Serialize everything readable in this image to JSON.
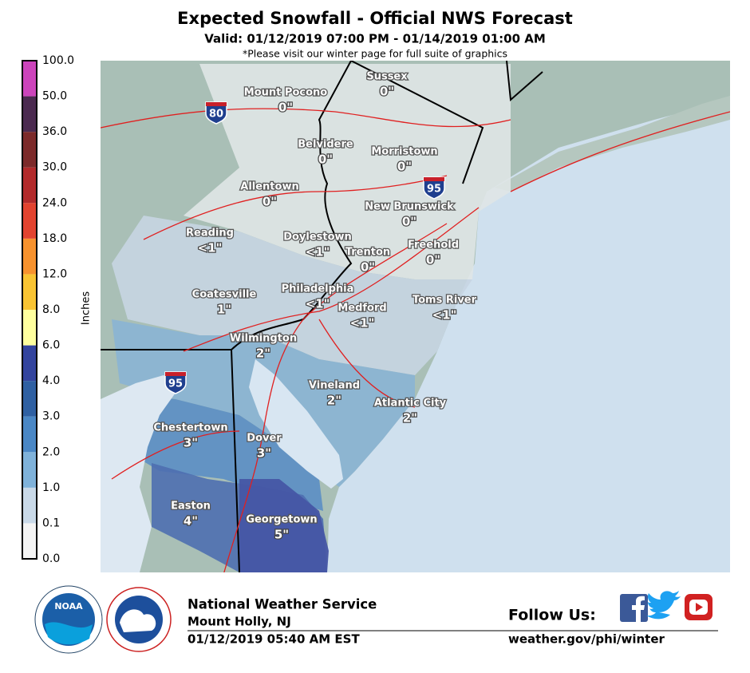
{
  "header": {
    "title": "Expected Snowfall - Official NWS Forecast",
    "valid": "Valid: 01/12/2019 07:00 PM - 01/14/2019 01:00 AM",
    "note": "*Please visit our winter page for full suite of graphics"
  },
  "legend": {
    "title": "Inches",
    "labels": [
      "0.0",
      "0.1",
      "1.0",
      "2.0",
      "3.0",
      "4.0",
      "6.0",
      "8.0",
      "12.0",
      "18.0",
      "24.0",
      "30.0",
      "36.0",
      "50.0",
      "100.0"
    ],
    "colors": [
      "#f4f4f4",
      "#c9d9e8",
      "#7fb2da",
      "#4a87c5",
      "#2f60a2",
      "#33449e",
      "#ffff9e",
      "#f9c433",
      "#f7922e",
      "#e2432f",
      "#b22a2b",
      "#7c2a2a",
      "#4b2a50",
      "#cc44bb"
    ]
  },
  "map": {
    "places": [
      {
        "name": "Mount Pocono",
        "amount": "0\""
      },
      {
        "name": "Sussex",
        "amount": "0\""
      },
      {
        "name": "Belvidere",
        "amount": "0\""
      },
      {
        "name": "Morristown",
        "amount": "0\""
      },
      {
        "name": "Allentown",
        "amount": "0\""
      },
      {
        "name": "New Brunswick",
        "amount": "0\""
      },
      {
        "name": "Reading",
        "amount": "<1\""
      },
      {
        "name": "Doylestown",
        "amount": "<1\""
      },
      {
        "name": "Trenton",
        "amount": "0\""
      },
      {
        "name": "Freehold",
        "amount": "0\""
      },
      {
        "name": "Coatesville",
        "amount": "1\""
      },
      {
        "name": "Philadelphia",
        "amount": "<1\""
      },
      {
        "name": "Medford",
        "amount": "<1\""
      },
      {
        "name": "Toms River",
        "amount": "<1\""
      },
      {
        "name": "Wilmington",
        "amount": "2\""
      },
      {
        "name": "Vineland",
        "amount": "2\""
      },
      {
        "name": "Atlantic City",
        "amount": "2\""
      },
      {
        "name": "Chestertown",
        "amount": "3\""
      },
      {
        "name": "Dover",
        "amount": "3\""
      },
      {
        "name": "Easton",
        "amount": "4\""
      },
      {
        "name": "Georgetown",
        "amount": "5\""
      }
    ],
    "shields": [
      "80",
      "95",
      "95"
    ]
  },
  "footer": {
    "logos": {
      "noaa": "NOAA"
    },
    "office": "National Weather Service",
    "location": "Mount Holly, NJ",
    "issued": "01/12/2019 05:40 AM EST",
    "follow": "Follow Us:",
    "url": "weather.gov/phi/winter"
  }
}
